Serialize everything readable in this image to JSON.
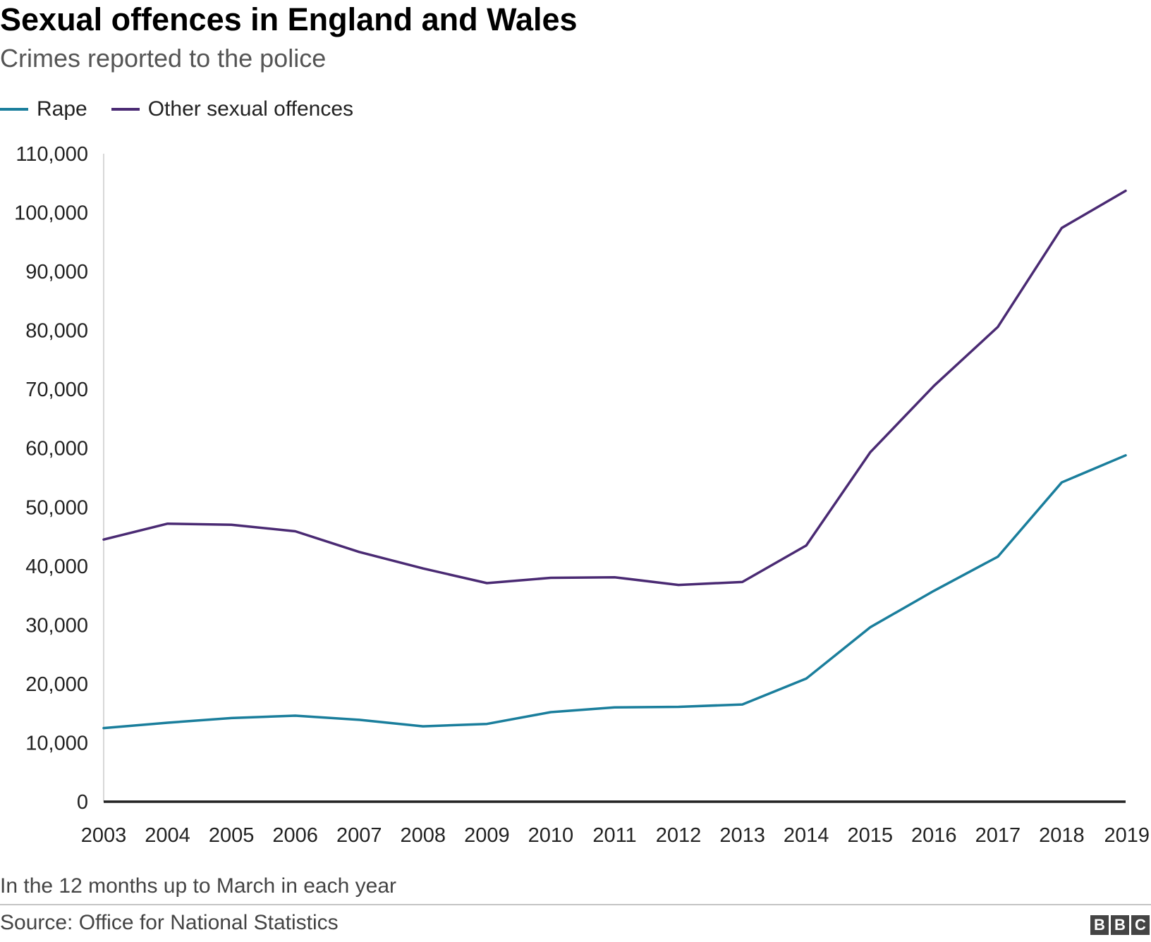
{
  "title": "Sexual offences in England and Wales",
  "subtitle": "Crimes reported to the police",
  "legend": [
    {
      "label": "Rape",
      "color": "#1a7e9c"
    },
    {
      "label": "Other sexual offences",
      "color": "#4a2a73"
    }
  ],
  "note": "In the 12 months up to March in each year",
  "source": "Source: Office for National Statistics",
  "logo": [
    "B",
    "B",
    "C"
  ],
  "chart_data": {
    "type": "line",
    "title": "Sexual offences in England and Wales",
    "subtitle": "Crimes reported to the police",
    "xlabel": "",
    "ylabel": "",
    "x": [
      "2003",
      "2004",
      "2005",
      "2006",
      "2007",
      "2008",
      "2009",
      "2010",
      "2011",
      "2012",
      "2013",
      "2014",
      "2015",
      "2016",
      "2017",
      "2018",
      "2019"
    ],
    "ylim": [
      0,
      110000
    ],
    "yticks": [
      0,
      10000,
      20000,
      30000,
      40000,
      50000,
      60000,
      70000,
      80000,
      90000,
      100000,
      110000
    ],
    "ytick_labels": [
      "0",
      "10,000",
      "20,000",
      "30,000",
      "40,000",
      "50,000",
      "60,000",
      "70,000",
      "80,000",
      "90,000",
      "100,000",
      "110,000"
    ],
    "grid": false,
    "legend_position": "top-left",
    "series": [
      {
        "name": "Rape",
        "color": "#1a7e9c",
        "values": [
          12500,
          13400,
          14200,
          14600,
          13900,
          12800,
          13200,
          15200,
          16000,
          16100,
          16500,
          20900,
          29600,
          35800,
          41600,
          54200,
          58800
        ]
      },
      {
        "name": "Other sexual offences",
        "color": "#4a2a73",
        "values": [
          44500,
          47200,
          47000,
          45900,
          42400,
          39600,
          37100,
          38000,
          38100,
          36800,
          37300,
          43500,
          59300,
          70600,
          80600,
          97400,
          103700
        ]
      }
    ]
  }
}
